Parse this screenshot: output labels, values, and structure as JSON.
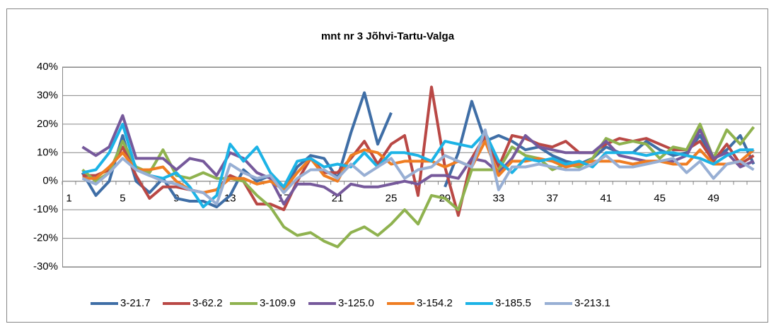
{
  "chart_data": {
    "type": "line",
    "title": "mnt nr 3 Jõhvi-Tartu-Valga",
    "categories": [
      "1",
      null,
      null,
      null,
      "5",
      null,
      null,
      null,
      "9",
      null,
      null,
      null,
      "13",
      null,
      null,
      null,
      "17",
      null,
      null,
      null,
      "21",
      null,
      null,
      null,
      "25",
      null,
      null,
      null,
      "29",
      null,
      null,
      null,
      "33",
      null,
      null,
      null,
      "37",
      null,
      null,
      null,
      "41",
      null,
      null,
      null,
      "45",
      null,
      null,
      null,
      "49",
      null,
      null,
      null
    ],
    "ylim": [
      -0.3,
      0.4
    ],
    "yticks": [
      {
        "value": -0.3,
        "label": "-30%"
      },
      {
        "value": -0.2,
        "label": "-20%"
      },
      {
        "value": -0.1,
        "label": "-10%"
      },
      {
        "value": 0,
        "label": "0%"
      },
      {
        "value": 0.1,
        "label": "10%"
      },
      {
        "value": 0.2,
        "label": "20%"
      },
      {
        "value": 0.3,
        "label": "30%"
      },
      {
        "value": 0.4,
        "label": "40%"
      }
    ],
    "grid": true,
    "legend": "bottom",
    "series": [
      {
        "name": "3-21.7",
        "color": "#3f6ea6",
        "values": [
          null,
          0.03,
          -0.05,
          0,
          0.16,
          0,
          -0.04,
          0.01,
          -0.06,
          -0.07,
          -0.07,
          -0.09,
          -0.05,
          0.04,
          0,
          0.02,
          -0.03,
          0.05,
          0.09,
          0.08,
          0.01,
          0.17,
          0.31,
          0.13,
          0.24,
          null,
          null,
          null,
          -0.02,
          0.1,
          0.28,
          0.14,
          0.16,
          0.14,
          0.11,
          0.12,
          0.09,
          0.07,
          0.06,
          0.08,
          0.12,
          0.1,
          0.1,
          0.14,
          0.11,
          0.09,
          0.1,
          0.16,
          0.08,
          0.11,
          0.16,
          0.06
        ]
      },
      {
        "name": "3-62.2",
        "color": "#b94845",
        "values": [
          null,
          0.02,
          0.02,
          0.04,
          0.12,
          0.02,
          -0.06,
          -0.02,
          -0.02,
          -0.03,
          -0.04,
          -0.03,
          0.02,
          0,
          -0.08,
          -0.08,
          -0.1,
          0,
          0.08,
          0.03,
          0.03,
          0.08,
          0.14,
          0.06,
          0.13,
          0.16,
          -0.05,
          0.33,
          0.05,
          -0.12,
          0.08,
          0.16,
          0.05,
          0.16,
          0.15,
          0.13,
          0.12,
          0.14,
          0.1,
          0.1,
          0.13,
          0.15,
          0.14,
          0.15,
          0.13,
          0.11,
          0.11,
          0.14,
          0.07,
          0.13,
          0.06,
          0.09
        ]
      },
      {
        "name": "3-109.9",
        "color": "#8fb24f",
        "values": [
          null,
          0.04,
          0,
          0.03,
          0.14,
          0.05,
          0.03,
          0.11,
          0.02,
          0.01,
          0.03,
          0.01,
          0.01,
          0,
          -0.05,
          -0.09,
          -0.16,
          -0.19,
          -0.18,
          -0.21,
          -0.23,
          -0.18,
          -0.16,
          -0.19,
          -0.15,
          -0.1,
          -0.15,
          -0.05,
          -0.06,
          -0.1,
          0.04,
          0.04,
          0.04,
          0.12,
          0.09,
          0.08,
          0.04,
          0.06,
          0.05,
          0.08,
          0.15,
          0.13,
          0.14,
          0.13,
          0.08,
          0.12,
          0.11,
          0.2,
          0.08,
          0.18,
          0.13,
          0.19
        ]
      },
      {
        "name": "3-125.0",
        "color": "#76599b",
        "values": [
          null,
          0.12,
          0.09,
          0.12,
          0.23,
          0.08,
          0.08,
          0.08,
          0.04,
          0.08,
          0.07,
          0.02,
          0.1,
          0.08,
          0.03,
          0.01,
          -0.08,
          -0.01,
          -0.01,
          -0.02,
          -0.05,
          -0.01,
          -0.02,
          -0.02,
          -0.01,
          0,
          -0.01,
          0.02,
          0.02,
          0.01,
          0.08,
          0.07,
          0.03,
          0.08,
          0.16,
          0.12,
          0.11,
          0.1,
          0.1,
          0.1,
          0.14,
          0.09,
          0.08,
          0.07,
          0.07,
          0.07,
          0.09,
          0.18,
          0.08,
          0.1,
          0.05,
          0.07
        ]
      },
      {
        "name": "3-154.2",
        "color": "#ef7d22",
        "values": [
          null,
          0.01,
          0.01,
          0.05,
          0.1,
          0.04,
          0.04,
          0.05,
          0,
          -0.03,
          -0.04,
          -0.03,
          0.01,
          0.01,
          -0.01,
          0,
          -0.03,
          0.03,
          0.08,
          0.02,
          0,
          0.09,
          0.11,
          0.1,
          0.06,
          0.07,
          0.07,
          0.07,
          0.05,
          0.07,
          0.05,
          0.14,
          0.02,
          0.07,
          0.07,
          0.08,
          0.07,
          0.05,
          0.06,
          0.07,
          0.07,
          0.07,
          0.06,
          0.07,
          0.07,
          0.06,
          0.06,
          0.11,
          0.06,
          0.06,
          0.07,
          0.11
        ]
      },
      {
        "name": "3-185.5",
        "color": "#1cb3e6",
        "values": [
          null,
          0.03,
          0.04,
          0.1,
          0.2,
          0.04,
          0.02,
          0.01,
          0.03,
          -0.02,
          -0.09,
          -0.05,
          0.13,
          0.07,
          0.12,
          0.03,
          -0.02,
          0.07,
          0.08,
          0.05,
          0.06,
          0.05,
          0.1,
          0.05,
          0.1,
          0.1,
          0.09,
          0.07,
          0.14,
          0.13,
          0.12,
          0.17,
          0.07,
          0.03,
          0.08,
          0.07,
          0.08,
          0.06,
          0.07,
          0.05,
          0.1,
          0.1,
          0.1,
          0.09,
          0.1,
          0.1,
          0.09,
          0.08,
          0.06,
          0.09,
          0.11,
          0.11
        ]
      },
      {
        "name": "3-213.1",
        "color": "#98afd4",
        "values": [
          null,
          0.01,
          -0.01,
          0.03,
          0.08,
          0.04,
          0.02,
          0,
          -0.01,
          -0.03,
          -0.04,
          -0.08,
          0.06,
          0.03,
          0.01,
          0.02,
          -0.04,
          0.01,
          0.04,
          0.04,
          0.01,
          0.06,
          0.02,
          0.05,
          0.08,
          0.01,
          0.04,
          0.05,
          0.09,
          0.07,
          0.05,
          0.18,
          -0.03,
          0.05,
          0.05,
          0.06,
          0.05,
          0.04,
          0.04,
          0.06,
          0.09,
          0.05,
          0.05,
          0.06,
          0.07,
          0.08,
          0.03,
          0.07,
          0.01,
          0.06,
          0.07,
          0.04
        ]
      }
    ]
  }
}
